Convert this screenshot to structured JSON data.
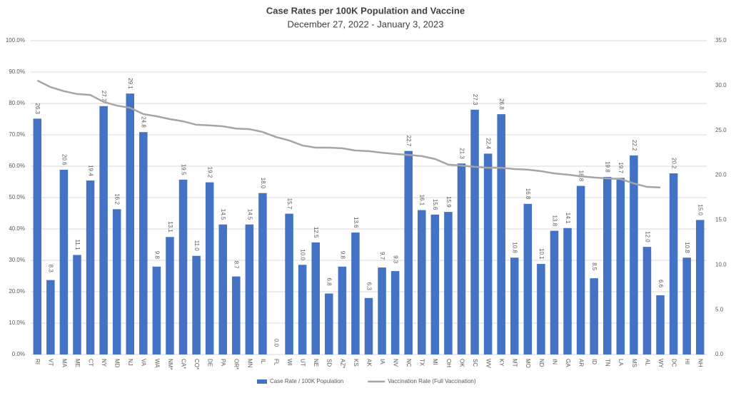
{
  "chart_data": {
    "type": "bar-line",
    "title": "Case Rates per 100K Population and Vaccine",
    "subtitle": "December 27, 2022 - January 3, 2023",
    "categories": [
      "RI",
      "VT",
      "MA",
      "ME",
      "CT",
      "NY",
      "MD",
      "NJ",
      "VA",
      "WA",
      "NM*",
      "CA*",
      "CO*",
      "DE",
      "PA",
      "OR*",
      "MN",
      "IL",
      "FL",
      "WI",
      "UT",
      "NE",
      "SD",
      "AZ*",
      "KS",
      "AK",
      "IA",
      "NV",
      "NC",
      "TX",
      "MI",
      "OH",
      "OK",
      "SC",
      "WV",
      "KY",
      "MT",
      "MO",
      "ND",
      "IN",
      "GA",
      "AR",
      "ID",
      "TN",
      "LA",
      "MS",
      "AL",
      "WY",
      "DC",
      "HI",
      "NH"
    ],
    "series": [
      {
        "name": "Case Rate / 100K Population",
        "type": "bar",
        "axis": "y2",
        "color": "#4472c4",
        "values": [
          26.3,
          8.3,
          20.6,
          11.1,
          19.4,
          27.7,
          16.2,
          29.1,
          24.8,
          9.8,
          13.1,
          19.5,
          11.0,
          19.2,
          14.5,
          8.7,
          14.5,
          18.0,
          0.0,
          15.7,
          10.0,
          12.5,
          6.8,
          9.8,
          13.6,
          6.3,
          9.7,
          9.3,
          22.7,
          16.1,
          15.6,
          15.9,
          21.3,
          27.3,
          22.4,
          26.8,
          10.8,
          16.8,
          10.1,
          13.8,
          14.1,
          18.8,
          8.5,
          19.8,
          19.7,
          22.2,
          12.0,
          6.6,
          20.2,
          10.8,
          15.0
        ],
        "value_labels": [
          "26.3",
          "8.3",
          "20.6",
          "11.1",
          "19.4",
          "27.7",
          "16.2",
          "29.1",
          "24.8",
          "9.8",
          "13.1",
          "19.5",
          "11.0",
          "19.2",
          "14.5",
          "8.7",
          "14.5",
          "18.0",
          "0.0",
          "15.7",
          "10.0",
          "12.5",
          "6.8",
          "9.8",
          "13.6",
          "6.3",
          "9.7",
          "9.3",
          "22.7",
          "16.1",
          "15.6",
          "15.9",
          "21.3",
          "27.3",
          "22.4",
          "26.8",
          "10.8",
          "16.8",
          "10.1",
          "13.8",
          "14.1",
          "18.8",
          "8.5",
          "19.8",
          "19.7",
          "22.2",
          "12.0",
          "6.6",
          "20.2",
          "10.8",
          "15.0"
        ]
      },
      {
        "name": "Vaccination Rate (Full Vaccination)",
        "type": "line",
        "axis": "y",
        "color": "#a5a5a5",
        "values": [
          87.3,
          85.2,
          83.9,
          83.0,
          82.7,
          80.5,
          79.3,
          78.6,
          76.6,
          75.9,
          75.0,
          74.3,
          73.2,
          73.0,
          72.7,
          72.0,
          71.8,
          70.9,
          69.3,
          68.2,
          66.6,
          65.9,
          65.9,
          65.7,
          65.0,
          64.8,
          64.3,
          63.9,
          63.6,
          63.2,
          62.3,
          60.5,
          60.2,
          59.8,
          59.5,
          59.5,
          59.1,
          58.9,
          58.4,
          57.7,
          57.3,
          56.8,
          56.4,
          56.1,
          55.9,
          54.5,
          53.4,
          53.2,
          null,
          null,
          null
        ]
      }
    ],
    "ylim": [
      0,
      100
    ],
    "yticks": [
      {
        "value": 0,
        "label": "0.0%"
      },
      {
        "value": 10,
        "label": "10.0%"
      },
      {
        "value": 20,
        "label": "20.0%"
      },
      {
        "value": 30,
        "label": "30.0%"
      },
      {
        "value": 40,
        "label": "40.0%"
      },
      {
        "value": 50,
        "label": "50.0%"
      },
      {
        "value": 60,
        "label": "60.0%"
      },
      {
        "value": 70,
        "label": "70.0%"
      },
      {
        "value": 80,
        "label": "80.0%"
      },
      {
        "value": 90,
        "label": "90.0%"
      },
      {
        "value": 100,
        "label": "100.0%"
      }
    ],
    "y2lim": [
      0,
      35
    ],
    "y2ticks": [
      {
        "value": 0,
        "label": "0.0"
      },
      {
        "value": 5,
        "label": "5.0"
      },
      {
        "value": 10,
        "label": "10.0"
      },
      {
        "value": 15,
        "label": "15.0"
      },
      {
        "value": 20,
        "label": "20.0"
      },
      {
        "value": 25,
        "label": "25.0"
      },
      {
        "value": 30,
        "label": "30.0"
      },
      {
        "value": 35,
        "label": "35.0"
      }
    ],
    "grid": true,
    "legend": "bottom"
  }
}
